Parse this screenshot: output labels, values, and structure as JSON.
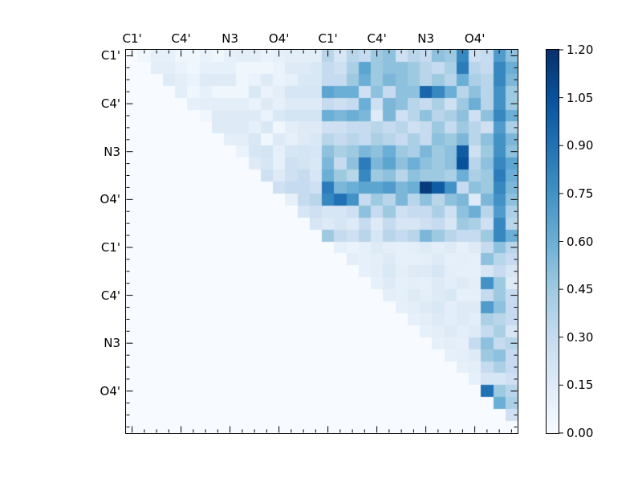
{
  "figure": {
    "background": "#ffffff",
    "frame_color": "#000000",
    "axes": {
      "x_tick_labels": [
        "C1'",
        "C4'",
        "N3",
        "O4'",
        "C1'",
        "C4'",
        "N3",
        "O4'"
      ],
      "y_tick_labels": [
        "C1'",
        "C4'",
        "N3",
        "O4'",
        "C1'",
        "C4'",
        "N3",
        "O4'"
      ],
      "labeled_tick_positions": [
        0,
        4,
        8,
        12,
        16,
        20,
        24,
        28
      ],
      "minor_ticks_every_cell": true,
      "ticks_direction": "in",
      "ticks_on_all_sides": true
    },
    "colorbar": {
      "min": 0.0,
      "max": 1.2,
      "tick_values": [
        1.2,
        1.05,
        0.9,
        0.75,
        0.6,
        0.45,
        0.3,
        0.15,
        0.0
      ],
      "tick_labels": [
        "1.20",
        "1.05",
        "0.90",
        "0.75",
        "0.60",
        "0.45",
        "0.30",
        "0.15",
        "0.00"
      ],
      "colormap_name": "Blues",
      "colormap_stops": [
        [
          247,
          251,
          255
        ],
        [
          222,
          235,
          247
        ],
        [
          198,
          219,
          239
        ],
        [
          158,
          202,
          225
        ],
        [
          107,
          174,
          214
        ],
        [
          66,
          146,
          198
        ],
        [
          33,
          113,
          181
        ],
        [
          8,
          81,
          156
        ],
        [
          8,
          48,
          107
        ]
      ]
    }
  },
  "chart_data": {
    "type": "heatmap",
    "n_rows": 32,
    "n_cols": 32,
    "structure": "upper-triangular",
    "vmin": 0.0,
    "vmax": 1.2,
    "colormap": "Blues",
    "x_group_labels": [
      "C1'",
      "C4'",
      "N3",
      "O4'",
      "C1'",
      "C4'",
      "N3",
      "O4'"
    ],
    "y_group_labels": [
      "C1'",
      "C4'",
      "N3",
      "O4'",
      "C1'",
      "C4'",
      "N3",
      "O4'"
    ],
    "cells_per_label_group": 4,
    "matrix": [
      [
        0,
        0.05,
        0.1,
        0.1,
        0.05,
        0.05,
        0.08,
        0.05,
        0.1,
        0.12,
        0.12,
        0.08,
        0.1,
        0.12,
        0.12,
        0.12,
        0.35,
        0.2,
        0.35,
        0.3,
        0.45,
        0.5,
        0.25,
        0.35,
        0.3,
        0.5,
        0.45,
        0.8,
        0.25,
        0.3,
        0.7,
        0.5
      ],
      [
        0,
        0,
        0.12,
        0.12,
        0.08,
        0.05,
        0.1,
        0.1,
        0.1,
        0.05,
        0.05,
        0.05,
        0.08,
        0.15,
        0.15,
        0.18,
        0.3,
        0.25,
        0.4,
        0.65,
        0.45,
        0.5,
        0.5,
        0.45,
        0.35,
        0.3,
        0.4,
        0.85,
        0.35,
        0.3,
        0.8,
        0.6
      ],
      [
        0,
        0,
        0,
        0.15,
        0.12,
        0.08,
        0.15,
        0.15,
        0.15,
        0.05,
        0.08,
        0.15,
        0.08,
        0.1,
        0.18,
        0.18,
        0.3,
        0.3,
        0.45,
        0.6,
        0.45,
        0.55,
        0.5,
        0.45,
        0.35,
        0.45,
        0.35,
        0.6,
        0.4,
        0.35,
        0.8,
        0.55
      ],
      [
        0,
        0,
        0,
        0,
        0.12,
        0.05,
        0.1,
        0.05,
        0.05,
        0.05,
        0.18,
        0.08,
        0.12,
        0.2,
        0.2,
        0.2,
        0.65,
        0.6,
        0.6,
        0.25,
        0.5,
        0.3,
        0.5,
        0.5,
        0.95,
        0.8,
        0.6,
        0.35,
        0.5,
        0.35,
        0.75,
        0.45
      ],
      [
        0,
        0,
        0,
        0,
        0,
        0.1,
        0.12,
        0.12,
        0.12,
        0.12,
        0.08,
        0.15,
        0.1,
        0.15,
        0.15,
        0.15,
        0.3,
        0.25,
        0.3,
        0.6,
        0.25,
        0.55,
        0.5,
        0.35,
        0.3,
        0.4,
        0.25,
        0.45,
        0.6,
        0.35,
        0.75,
        0.45
      ],
      [
        0,
        0,
        0,
        0,
        0,
        0,
        0.05,
        0.15,
        0.15,
        0.15,
        0.15,
        0.08,
        0.18,
        0.22,
        0.22,
        0.22,
        0.6,
        0.55,
        0.6,
        0.55,
        0.15,
        0.55,
        0.25,
        0.35,
        0.5,
        0.35,
        0.4,
        0.5,
        0.25,
        0.5,
        0.8,
        0.6
      ],
      [
        0,
        0,
        0,
        0,
        0,
        0,
        0,
        0.15,
        0.15,
        0.15,
        0.1,
        0.18,
        0.05,
        0.12,
        0.15,
        0.15,
        0.25,
        0.25,
        0.3,
        0.3,
        0.35,
        0.3,
        0.35,
        0.25,
        0.3,
        0.45,
        0.3,
        0.45,
        0.35,
        0.25,
        0.7,
        0.4
      ],
      [
        0,
        0,
        0,
        0,
        0,
        0,
        0,
        0,
        0.12,
        0.12,
        0.18,
        0.05,
        0.15,
        0.1,
        0.15,
        0.18,
        0.35,
        0.3,
        0.35,
        0.3,
        0.4,
        0.35,
        0.3,
        0.4,
        0.3,
        0.5,
        0.45,
        0.55,
        0.35,
        0.5,
        0.75,
        0.55
      ],
      [
        0,
        0,
        0,
        0,
        0,
        0,
        0,
        0,
        0,
        0.08,
        0.2,
        0.22,
        0.1,
        0.2,
        0.22,
        0.2,
        0.5,
        0.4,
        0.45,
        0.55,
        0.5,
        0.6,
        0.45,
        0.4,
        0.55,
        0.45,
        0.5,
        1.0,
        0.25,
        0.45,
        0.75,
        0.5
      ],
      [
        0,
        0,
        0,
        0,
        0,
        0,
        0,
        0,
        0,
        0,
        0.15,
        0.2,
        0.1,
        0.25,
        0.22,
        0.18,
        0.55,
        0.3,
        0.5,
        0.85,
        0.55,
        0.65,
        0.5,
        0.6,
        0.5,
        0.45,
        0.5,
        1.05,
        0.35,
        0.5,
        0.8,
        0.65
      ],
      [
        0,
        0,
        0,
        0,
        0,
        0,
        0,
        0,
        0,
        0,
        0,
        0.25,
        0.15,
        0.25,
        0.3,
        0.2,
        0.6,
        0.45,
        0.35,
        0.8,
        0.45,
        0.5,
        0.35,
        0.5,
        0.45,
        0.45,
        0.4,
        0.6,
        0.4,
        0.45,
        0.85,
        0.6
      ],
      [
        0,
        0,
        0,
        0,
        0,
        0,
        0,
        0,
        0,
        0,
        0,
        0,
        0.25,
        0.3,
        0.3,
        0.25,
        0.85,
        0.55,
        0.6,
        0.65,
        0.65,
        0.7,
        0.55,
        0.6,
        1.15,
        1.0,
        0.75,
        0.3,
        0.5,
        0.45,
        0.8,
        0.55
      ],
      [
        0,
        0,
        0,
        0,
        0,
        0,
        0,
        0,
        0,
        0,
        0,
        0,
        0,
        0.1,
        0.3,
        0.35,
        0.8,
        0.9,
        0.75,
        0.3,
        0.45,
        0.35,
        0.55,
        0.35,
        0.5,
        0.35,
        0.5,
        0.55,
        0.15,
        0.55,
        0.75,
        0.5
      ],
      [
        0,
        0,
        0,
        0,
        0,
        0,
        0,
        0,
        0,
        0,
        0,
        0,
        0,
        0,
        0.2,
        0.25,
        0.2,
        0.2,
        0.25,
        0.5,
        0.3,
        0.45,
        0.25,
        0.3,
        0.3,
        0.4,
        0.25,
        0.5,
        0.6,
        0.35,
        0.7,
        0.4
      ],
      [
        0,
        0,
        0,
        0,
        0,
        0,
        0,
        0,
        0,
        0,
        0,
        0,
        0,
        0,
        0,
        0.2,
        0.15,
        0.2,
        0.15,
        0.3,
        0.15,
        0.3,
        0.2,
        0.2,
        0.25,
        0.3,
        0.2,
        0.45,
        0.4,
        0.25,
        0.8,
        0.35
      ],
      [
        0,
        0,
        0,
        0,
        0,
        0,
        0,
        0,
        0,
        0,
        0,
        0,
        0,
        0,
        0,
        0,
        0.45,
        0.3,
        0.25,
        0.35,
        0.2,
        0.35,
        0.3,
        0.35,
        0.55,
        0.45,
        0.35,
        0.3,
        0.3,
        0.45,
        0.8,
        0.6
      ],
      [
        0,
        0,
        0,
        0,
        0,
        0,
        0,
        0,
        0,
        0,
        0,
        0,
        0,
        0,
        0,
        0,
        0,
        0.1,
        0.08,
        0.1,
        0.15,
        0.12,
        0.1,
        0.12,
        0.15,
        0.12,
        0.15,
        0.1,
        0.15,
        0.3,
        0.5,
        0.35
      ],
      [
        0,
        0,
        0,
        0,
        0,
        0,
        0,
        0,
        0,
        0,
        0,
        0,
        0,
        0,
        0,
        0,
        0,
        0,
        0.12,
        0.1,
        0.12,
        0.15,
        0.1,
        0.1,
        0.12,
        0.15,
        0.1,
        0.12,
        0.1,
        0.5,
        0.35,
        0.3
      ],
      [
        0,
        0,
        0,
        0,
        0,
        0,
        0,
        0,
        0,
        0,
        0,
        0,
        0,
        0,
        0,
        0,
        0,
        0,
        0,
        0.1,
        0.12,
        0.18,
        0.12,
        0.15,
        0.15,
        0.2,
        0.12,
        0.1,
        0.1,
        0.2,
        0.3,
        0.2
      ],
      [
        0,
        0,
        0,
        0,
        0,
        0,
        0,
        0,
        0,
        0,
        0,
        0,
        0,
        0,
        0,
        0,
        0,
        0,
        0,
        0,
        0.1,
        0.15,
        0.1,
        0.12,
        0.1,
        0.15,
        0.12,
        0.15,
        0.12,
        0.75,
        0.45,
        0.15
      ],
      [
        0,
        0,
        0,
        0,
        0,
        0,
        0,
        0,
        0,
        0,
        0,
        0,
        0,
        0,
        0,
        0,
        0,
        0,
        0,
        0,
        0,
        0.12,
        0.1,
        0.15,
        0.12,
        0.15,
        0.18,
        0.1,
        0.1,
        0.3,
        0.45,
        0.3
      ],
      [
        0,
        0,
        0,
        0,
        0,
        0,
        0,
        0,
        0,
        0,
        0,
        0,
        0,
        0,
        0,
        0,
        0,
        0,
        0,
        0,
        0,
        0,
        0.1,
        0.12,
        0.15,
        0.18,
        0.12,
        0.15,
        0.15,
        0.7,
        0.5,
        0.3
      ],
      [
        0,
        0,
        0,
        0,
        0,
        0,
        0,
        0,
        0,
        0,
        0,
        0,
        0,
        0,
        0,
        0,
        0,
        0,
        0,
        0,
        0,
        0,
        0,
        0.1,
        0.12,
        0.15,
        0.12,
        0.15,
        0.12,
        0.4,
        0.35,
        0.3
      ],
      [
        0,
        0,
        0,
        0,
        0,
        0,
        0,
        0,
        0,
        0,
        0,
        0,
        0,
        0,
        0,
        0,
        0,
        0,
        0,
        0,
        0,
        0,
        0,
        0,
        0.1,
        0.12,
        0.15,
        0.12,
        0.15,
        0.3,
        0.4,
        0.2
      ],
      [
        0,
        0,
        0,
        0,
        0,
        0,
        0,
        0,
        0,
        0,
        0,
        0,
        0,
        0,
        0,
        0,
        0,
        0,
        0,
        0,
        0,
        0,
        0,
        0,
        0,
        0.1,
        0.12,
        0.1,
        0.3,
        0.5,
        0.3,
        0.35
      ],
      [
        0,
        0,
        0,
        0,
        0,
        0,
        0,
        0,
        0,
        0,
        0,
        0,
        0,
        0,
        0,
        0,
        0,
        0,
        0,
        0,
        0,
        0,
        0,
        0,
        0,
        0,
        0.1,
        0.12,
        0.15,
        0.45,
        0.5,
        0.3
      ],
      [
        0,
        0,
        0,
        0,
        0,
        0,
        0,
        0,
        0,
        0,
        0,
        0,
        0,
        0,
        0,
        0,
        0,
        0,
        0,
        0,
        0,
        0,
        0,
        0,
        0,
        0,
        0,
        0.1,
        0.12,
        0.3,
        0.4,
        0.3
      ],
      [
        0,
        0,
        0,
        0,
        0,
        0,
        0,
        0,
        0,
        0,
        0,
        0,
        0,
        0,
        0,
        0,
        0,
        0,
        0,
        0,
        0,
        0,
        0,
        0,
        0,
        0,
        0,
        0,
        0.1,
        0.2,
        0.2,
        0.25
      ],
      [
        0,
        0,
        0,
        0,
        0,
        0,
        0,
        0,
        0,
        0,
        0,
        0,
        0,
        0,
        0,
        0,
        0,
        0,
        0,
        0,
        0,
        0,
        0,
        0,
        0,
        0,
        0,
        0,
        0,
        0.9,
        0.45,
        0.35
      ],
      [
        0,
        0,
        0,
        0,
        0,
        0,
        0,
        0,
        0,
        0,
        0,
        0,
        0,
        0,
        0,
        0,
        0,
        0,
        0,
        0,
        0,
        0,
        0,
        0,
        0,
        0,
        0,
        0,
        0,
        0,
        0.6,
        0.4
      ],
      [
        0,
        0,
        0,
        0,
        0,
        0,
        0,
        0,
        0,
        0,
        0,
        0,
        0,
        0,
        0,
        0,
        0,
        0,
        0,
        0,
        0,
        0,
        0,
        0,
        0,
        0,
        0,
        0,
        0,
        0,
        0,
        0.25
      ],
      [
        0,
        0,
        0,
        0,
        0,
        0,
        0,
        0,
        0,
        0,
        0,
        0,
        0,
        0,
        0,
        0,
        0,
        0,
        0,
        0,
        0,
        0,
        0,
        0,
        0,
        0,
        0,
        0,
        0,
        0,
        0,
        0
      ]
    ]
  }
}
